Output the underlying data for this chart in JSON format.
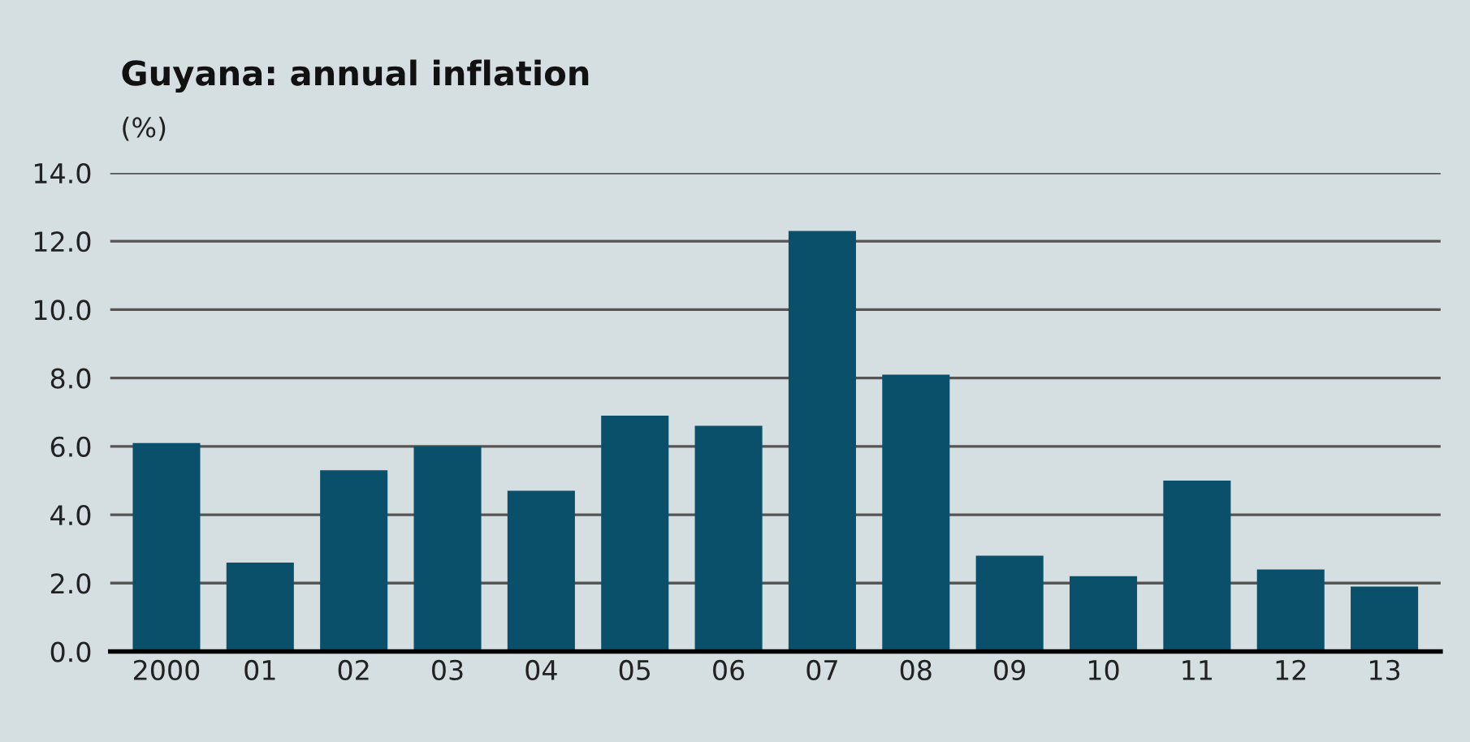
{
  "chart_data": {
    "type": "bar",
    "title": "Guyana: annual inflation",
    "subtitle": "(%)",
    "categories": [
      "2000",
      "01",
      "02",
      "03",
      "04",
      "05",
      "06",
      "07",
      "08",
      "09",
      "10",
      "11",
      "12",
      "13"
    ],
    "values": [
      6.1,
      2.6,
      5.3,
      6.0,
      4.7,
      6.9,
      6.6,
      12.3,
      8.1,
      2.8,
      2.2,
      5.0,
      2.4,
      1.9
    ],
    "color": "#0b506b",
    "ylim": [
      0,
      14
    ],
    "yticks": [
      {
        "value": 0,
        "label": "0.0"
      },
      {
        "value": 2,
        "label": "2.0"
      },
      {
        "value": 4,
        "label": "4.0"
      },
      {
        "value": 6,
        "label": "6.0"
      },
      {
        "value": 8,
        "label": "8.0"
      },
      {
        "value": 10,
        "label": "10.0"
      },
      {
        "value": 12,
        "label": "12.0"
      },
      {
        "value": 14,
        "label": "14.0"
      }
    ],
    "grid": "y"
  }
}
